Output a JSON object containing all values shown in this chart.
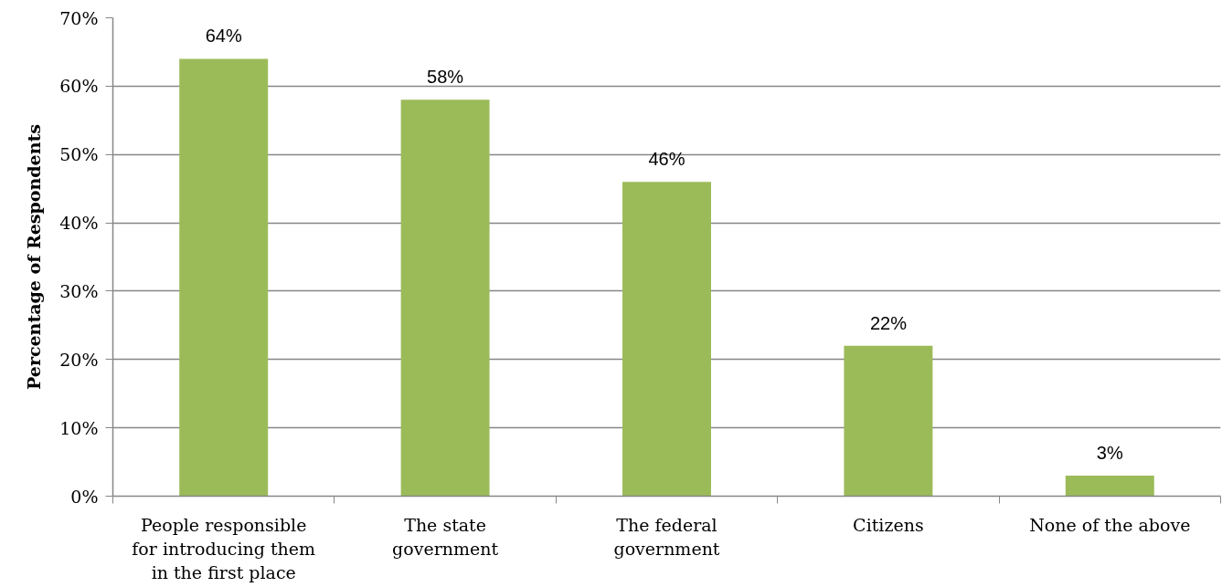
{
  "chart_data": {
    "type": "bar",
    "ylabel": "Percentage of Respondents",
    "categories": [
      "People responsible\nfor introducing them\nin the first place",
      "The state\ngovernment",
      "The federal\ngovernment",
      "Citizens",
      "None of the above"
    ],
    "values": [
      64,
      58,
      46,
      22,
      3
    ],
    "value_labels": [
      "64%",
      "58%",
      "46%",
      "22%",
      "3%"
    ],
    "color": "#9bbb59",
    "ylim": [
      0,
      70
    ],
    "yticks": [
      {
        "value": 0,
        "label": "0%"
      },
      {
        "value": 10,
        "label": "10%"
      },
      {
        "value": 20,
        "label": "20%"
      },
      {
        "value": 30,
        "label": "30%"
      },
      {
        "value": 40,
        "label": "40%"
      },
      {
        "value": 50,
        "label": "50%"
      },
      {
        "value": 60,
        "label": "60%"
      },
      {
        "value": 70,
        "label": "70%"
      }
    ],
    "grid": "y"
  }
}
